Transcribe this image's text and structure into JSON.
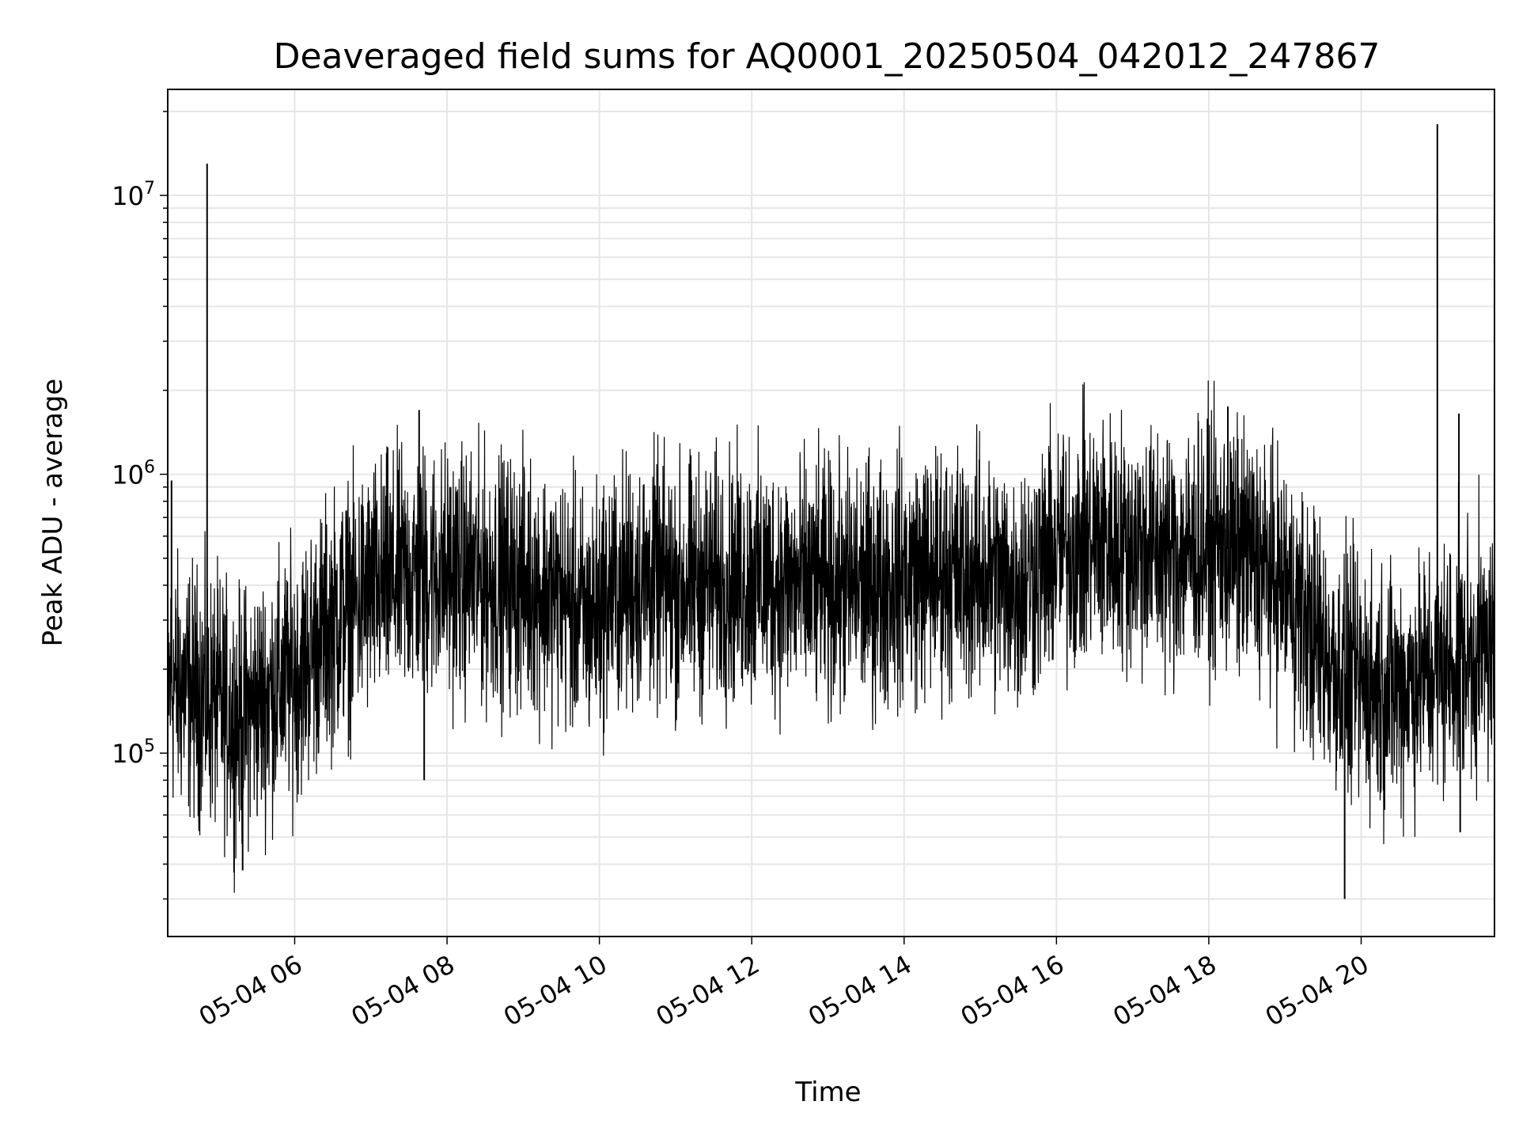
{
  "chart_data": {
    "type": "line",
    "title": "Deaveraged field sums for AQ0001_20250504_042012_247867",
    "xlabel": "Time",
    "ylabel": "Peak ADU - average",
    "yscale": "log",
    "ylim": [
      22000,
      24000000
    ],
    "xlim": [
      "2025-05-04T04:20",
      "2025-05-04T21:45"
    ],
    "grid": true,
    "line_color": "#000000",
    "x_ticks": [
      {
        "t": "2025-05-04T06:00",
        "label": "05-04 06"
      },
      {
        "t": "2025-05-04T08:00",
        "label": "05-04 08"
      },
      {
        "t": "2025-05-04T10:00",
        "label": "05-04 10"
      },
      {
        "t": "2025-05-04T12:00",
        "label": "05-04 12"
      },
      {
        "t": "2025-05-04T14:00",
        "label": "05-04 14"
      },
      {
        "t": "2025-05-04T16:00",
        "label": "05-04 16"
      },
      {
        "t": "2025-05-04T18:00",
        "label": "05-04 18"
      },
      {
        "t": "2025-05-04T20:00",
        "label": "05-04 20"
      }
    ],
    "y_ticks": [
      {
        "value": 100000,
        "base": "10",
        "exp": "5"
      },
      {
        "value": 1000000,
        "base": "10",
        "exp": "6"
      },
      {
        "value": 10000000,
        "base": "10",
        "exp": "7"
      }
    ],
    "series": [
      {
        "values_note_free": true,
        "points": [
          [
            "2025-05-04T04:20",
            180000
          ],
          [
            "2025-05-04T04:35",
            170000
          ],
          [
            "2025-05-04T04:50",
            160000
          ],
          [
            "2025-05-04T05:00",
            150000
          ],
          [
            "2025-05-04T05:15",
            130000
          ],
          [
            "2025-05-04T05:30",
            150000
          ],
          [
            "2025-05-04T05:45",
            170000
          ],
          [
            "2025-05-04T06:00",
            190000
          ],
          [
            "2025-05-04T06:15",
            240000
          ],
          [
            "2025-05-04T06:30",
            300000
          ],
          [
            "2025-05-04T06:45",
            340000
          ],
          [
            "2025-05-04T07:00",
            380000
          ],
          [
            "2025-05-04T07:20",
            420000
          ],
          [
            "2025-05-04T07:40",
            450000
          ],
          [
            "2025-05-04T08:00",
            440000
          ],
          [
            "2025-05-04T08:30",
            420000
          ],
          [
            "2025-05-04T09:00",
            410000
          ],
          [
            "2025-05-04T09:30",
            360000
          ],
          [
            "2025-05-04T09:50",
            300000
          ],
          [
            "2025-05-04T10:10",
            380000
          ],
          [
            "2025-05-04T10:40",
            420000
          ],
          [
            "2025-05-04T11:00",
            390000
          ],
          [
            "2025-05-04T11:30",
            410000
          ],
          [
            "2025-05-04T12:00",
            420000
          ],
          [
            "2025-05-04T12:30",
            400000
          ],
          [
            "2025-05-04T13:00",
            390000
          ],
          [
            "2025-05-04T13:30",
            400000
          ],
          [
            "2025-05-04T14:00",
            430000
          ],
          [
            "2025-05-04T14:30",
            450000
          ],
          [
            "2025-05-04T15:00",
            440000
          ],
          [
            "2025-05-04T15:30",
            400000
          ],
          [
            "2025-05-04T16:00",
            520000
          ],
          [
            "2025-05-04T16:30",
            580000
          ],
          [
            "2025-05-04T17:00",
            560000
          ],
          [
            "2025-05-04T17:30",
            520000
          ],
          [
            "2025-05-04T18:00",
            560000
          ],
          [
            "2025-05-04T18:30",
            520000
          ],
          [
            "2025-05-04T19:00",
            400000
          ],
          [
            "2025-05-04T19:20",
            280000
          ],
          [
            "2025-05-04T19:40",
            200000
          ],
          [
            "2025-05-04T20:00",
            180000
          ],
          [
            "2025-05-04T20:20",
            170000
          ],
          [
            "2025-05-04T20:40",
            180000
          ],
          [
            "2025-05-04T21:00",
            200000
          ],
          [
            "2025-05-04T21:20",
            220000
          ],
          [
            "2025-05-04T21:45",
            240000
          ]
        ],
        "noise_decades": 0.22
      }
    ],
    "spikes": [
      [
        "2025-05-04T04:51",
        13000000
      ],
      [
        "2025-05-04T04:23",
        950000
      ],
      [
        "2025-05-04T07:38",
        1700000
      ],
      [
        "2025-05-04T07:42",
        80000
      ],
      [
        "2025-05-04T05:19",
        38000
      ],
      [
        "2025-05-04T18:15",
        1750000
      ],
      [
        "2025-05-04T19:47",
        30000
      ],
      [
        "2025-05-04T21:00",
        18000000
      ],
      [
        "2025-05-04T21:17",
        1650000
      ],
      [
        "2025-05-04T21:18",
        52000
      ]
    ]
  }
}
